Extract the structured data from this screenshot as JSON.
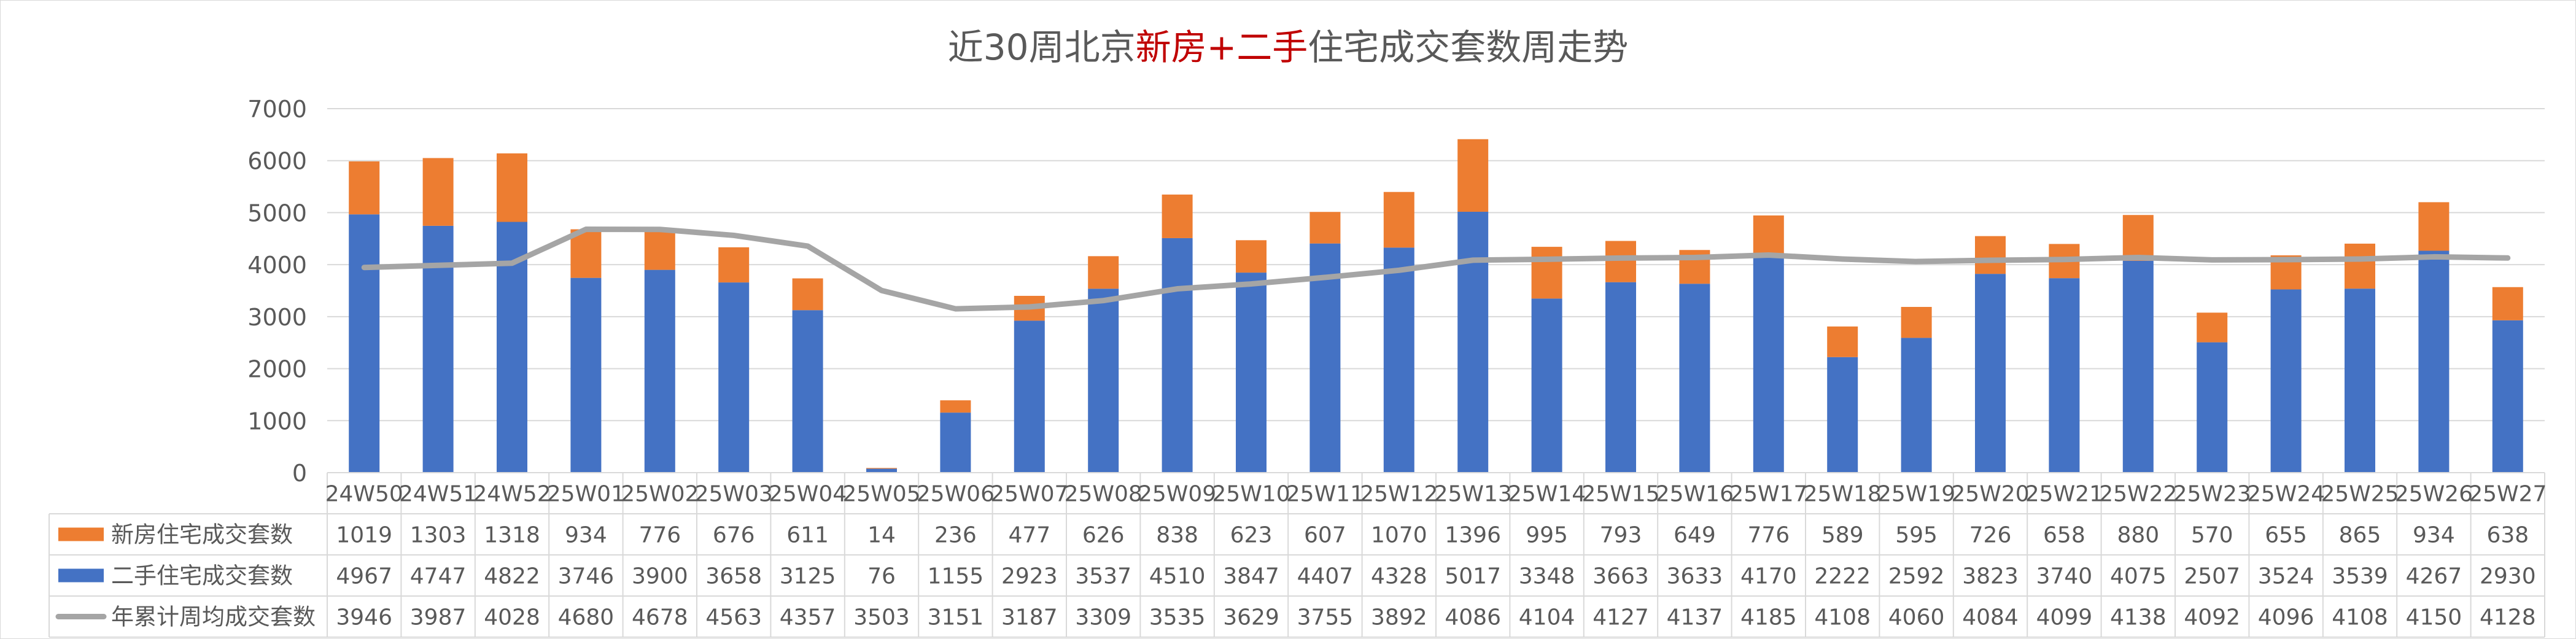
{
  "chart_data": {
    "type": "bar",
    "title_parts": [
      {
        "text": "近30周北京",
        "color": "#595959"
      },
      {
        "text": "新房",
        "color": "#c00000"
      },
      {
        "text": "+",
        "color": "#c00000"
      },
      {
        "text": "二手",
        "color": "#c00000"
      },
      {
        "text": "住宅成交套数周走势",
        "color": "#595959"
      }
    ],
    "stacked": true,
    "ylim": [
      0,
      7000
    ],
    "y_ticks": [
      0,
      1000,
      2000,
      3000,
      4000,
      5000,
      6000,
      7000
    ],
    "grid": "horizontal",
    "legend_placement": "data-table-left",
    "categories": [
      "24W50",
      "24W51",
      "24W52",
      "25W01",
      "25W02",
      "25W03",
      "25W04",
      "25W05",
      "25W06",
      "25W07",
      "25W08",
      "25W09",
      "25W10",
      "25W11",
      "25W12",
      "25W13",
      "25W14",
      "25W15",
      "25W16",
      "25W17",
      "25W18",
      "25W19",
      "25W20",
      "25W21",
      "25W22",
      "25W23",
      "25W24",
      "25W25",
      "25W26",
      "25W27"
    ],
    "series": [
      {
        "name": "新房住宅成交套数",
        "type": "bar",
        "color": "#ed7d31",
        "values": [
          1019,
          1303,
          1318,
          934,
          776,
          676,
          611,
          14,
          236,
          477,
          626,
          838,
          623,
          607,
          1070,
          1396,
          995,
          793,
          649,
          776,
          589,
          595,
          726,
          658,
          880,
          570,
          655,
          865,
          934,
          638
        ]
      },
      {
        "name": "二手住宅成交套数",
        "type": "bar",
        "color": "#4472c4",
        "values": [
          4967,
          4747,
          4822,
          3746,
          3900,
          3658,
          3125,
          76,
          1155,
          2923,
          3537,
          4510,
          3847,
          4407,
          4328,
          5017,
          3348,
          3663,
          3633,
          4170,
          2222,
          2592,
          3823,
          3740,
          4075,
          2507,
          3524,
          3539,
          4267,
          2930
        ]
      },
      {
        "name": "年累计周均成交套数",
        "type": "line",
        "color": "#a5a5a5",
        "values": [
          3946,
          3987,
          4028,
          4680,
          4678,
          4563,
          4357,
          3503,
          3151,
          3187,
          3309,
          3535,
          3629,
          3755,
          3892,
          4086,
          4104,
          4127,
          4137,
          4185,
          4108,
          4060,
          4084,
          4099,
          4138,
          4092,
          4096,
          4108,
          4150,
          4128
        ]
      }
    ]
  }
}
